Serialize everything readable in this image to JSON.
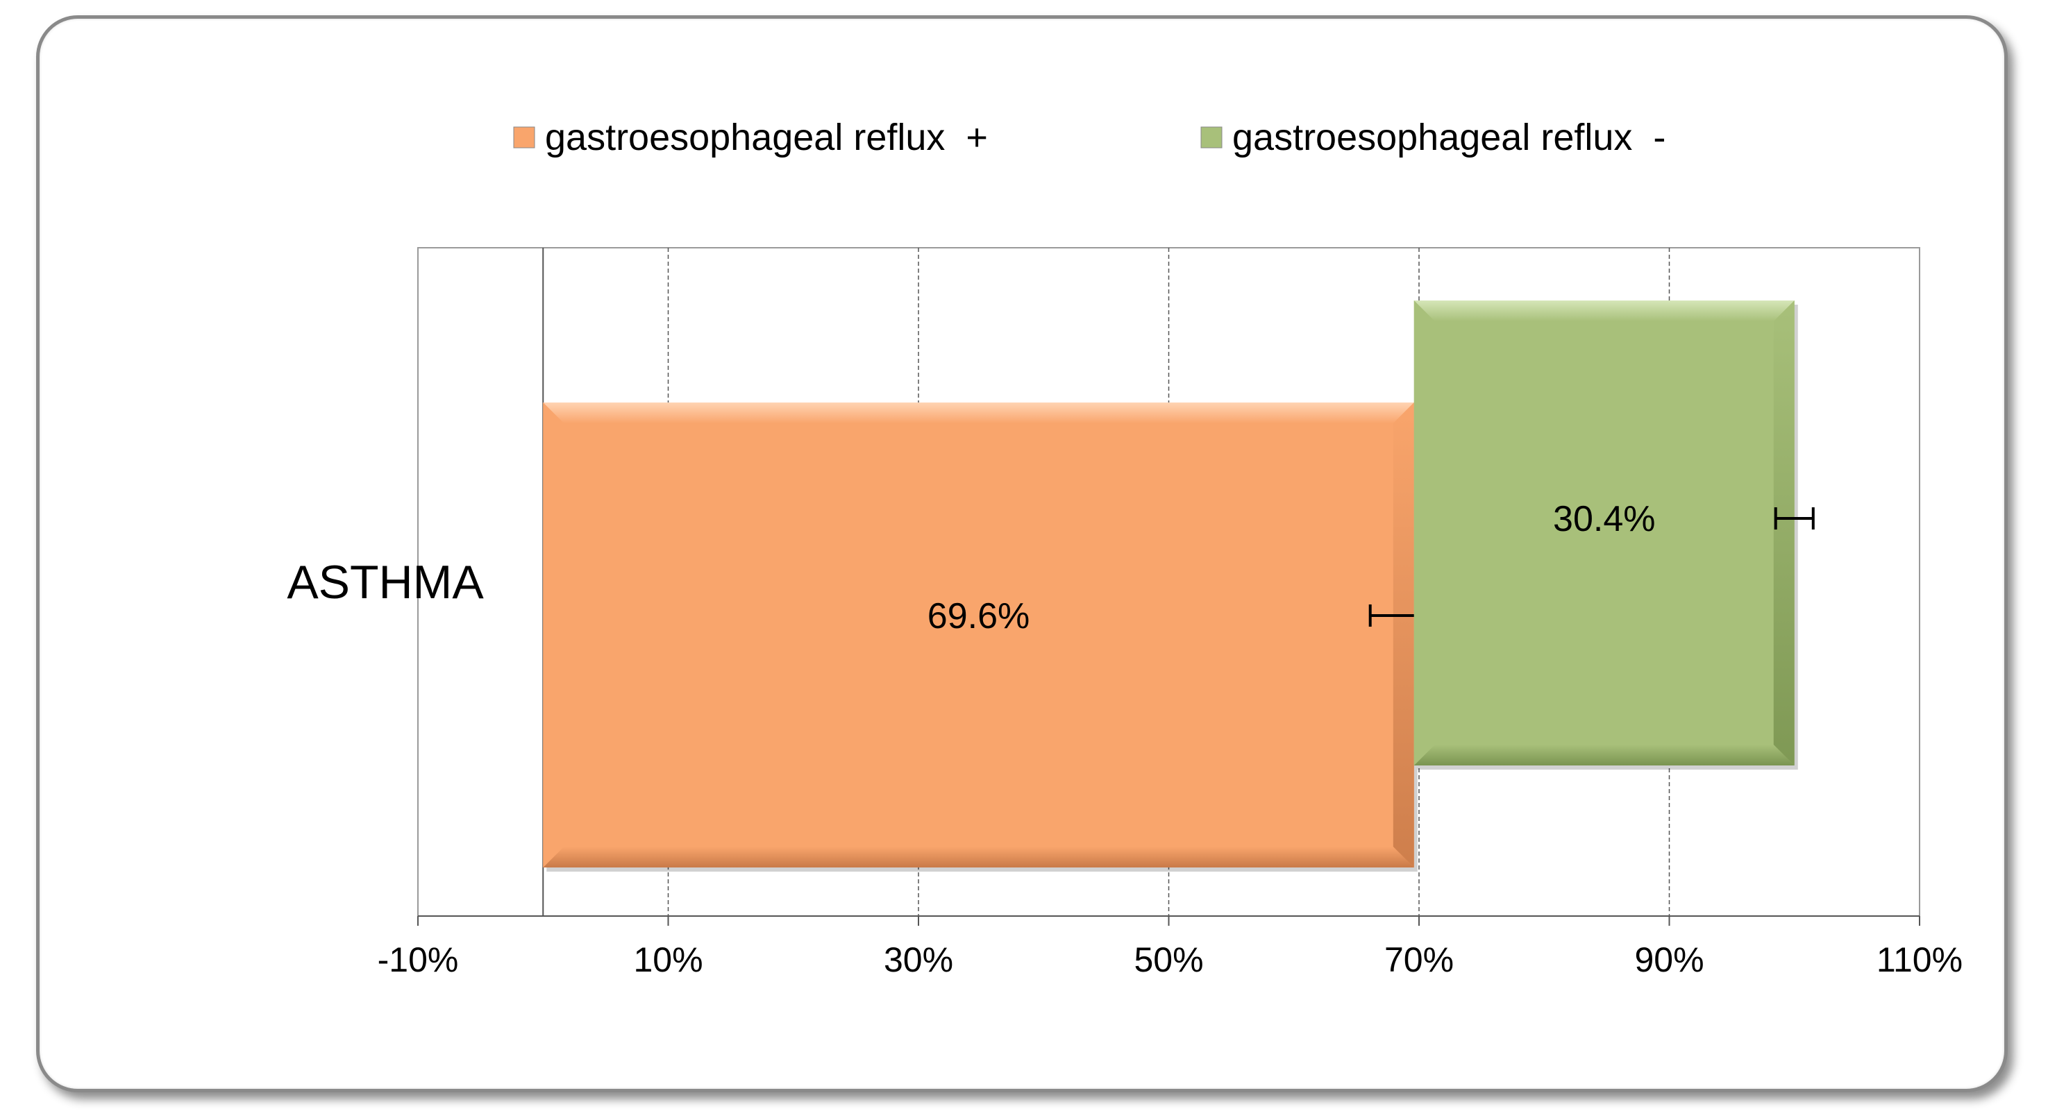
{
  "chart_data": {
    "type": "bar",
    "orientation": "horizontal",
    "categories": [
      "ASTHMA"
    ],
    "series": [
      {
        "name": "gastroesophageal reflux  +",
        "values": [
          69.6
        ],
        "start": [
          0
        ],
        "error": [
          3.5
        ],
        "label": "69.6%",
        "color": "#F9A56C"
      },
      {
        "name": "gastroesophageal reflux  -",
        "values": [
          30.4
        ],
        "start": [
          69.6
        ],
        "error": [
          1.5
        ],
        "label": "30.4%",
        "color": "#A8C07A"
      }
    ],
    "xlim": [
      -10,
      110
    ],
    "xticks": [
      -10,
      10,
      30,
      50,
      70,
      90,
      110
    ],
    "xtick_labels": [
      "-10%",
      "10%",
      "30%",
      "50%",
      "70%",
      "90%",
      "110%"
    ],
    "grid": true,
    "legend_position": "top",
    "title": "",
    "xlabel": "",
    "ylabel": ""
  }
}
